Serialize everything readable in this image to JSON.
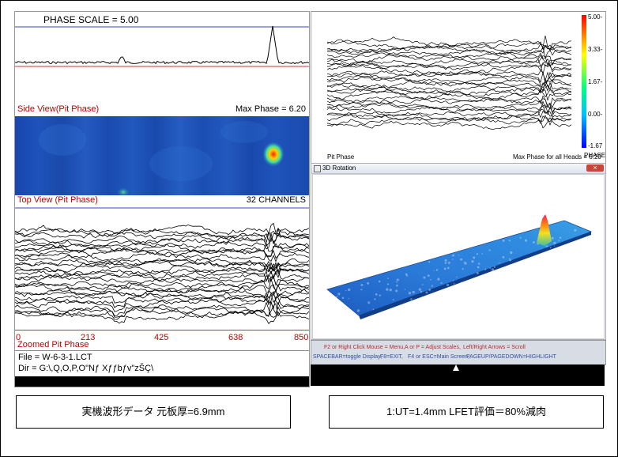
{
  "left": {
    "phase_scale_label": "PHASE SCALE =  5.00",
    "side_view_label": "Side View(Pit Phase)",
    "max_phase_label": "Max Phase = 6.20",
    "top_view_label": "Top View (Pit Phase)",
    "channels_label": "32 CHANNELS",
    "axis_ticks": [
      "0",
      "213",
      "425",
      "638",
      "850"
    ],
    "zoomed_label": "Zoomed Pit Phase",
    "file_line": "File = W-6-3-1.LCT",
    "dir_line": "Dir = G:\\,Q,O,P,O\"Nƒ Xƒƒbƒv\"zŠÇ\\"
  },
  "right": {
    "pit_phase_label": "Pit Phase",
    "max_phase_all_label": "Max Phase for all Heads = 6.20",
    "colorbar_ticks": [
      "5.00-",
      "3.33-",
      "1.67-",
      "0.00-",
      "-1.67"
    ],
    "colorbar_title": "PHASE",
    "rotation_title": "3D Rotation",
    "close_glyph": "×",
    "help_line1": [
      "F2 or Right Click Mouse = Menu,",
      "A or P = Adjust Scales,",
      "Left/Right Arrows = Scroll"
    ],
    "help_line2": [
      "SPACEBAR=toggle Display,",
      "F8=EXIT,",
      "F4 or ESC=Main Screen,",
      "PAGEUP/PAGEDOWN=HIGHLIGHT"
    ]
  },
  "captions": {
    "left": "実機波形データ 元板厚=6.9mm",
    "right": "1:UT=1.4mm LFET評価＝80%減肉"
  },
  "colors": {
    "heatmap_bg": "#1a4fb8",
    "red_label": "#c00000",
    "help_text": "#b03030",
    "help_text_blue": "#3050a0"
  }
}
